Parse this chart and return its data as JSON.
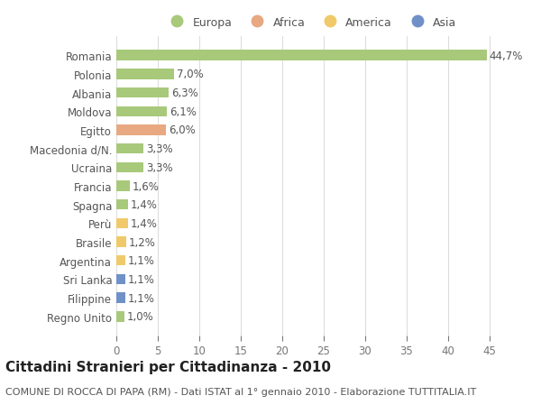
{
  "categories": [
    "Romania",
    "Polonia",
    "Albania",
    "Moldova",
    "Egitto",
    "Macedonia d/N.",
    "Ucraina",
    "Francia",
    "Spagna",
    "Perù",
    "Brasile",
    "Argentina",
    "Sri Lanka",
    "Filippine",
    "Regno Unito"
  ],
  "values": [
    44.7,
    7.0,
    6.3,
    6.1,
    6.0,
    3.3,
    3.3,
    1.6,
    1.4,
    1.4,
    1.2,
    1.1,
    1.1,
    1.1,
    1.0
  ],
  "labels": [
    "44,7%",
    "7,0%",
    "6,3%",
    "6,1%",
    "6,0%",
    "3,3%",
    "3,3%",
    "1,6%",
    "1,4%",
    "1,4%",
    "1,2%",
    "1,1%",
    "1,1%",
    "1,1%",
    "1,0%"
  ],
  "colors": [
    "#a8c97a",
    "#a8c97a",
    "#a8c97a",
    "#a8c97a",
    "#e8a882",
    "#a8c97a",
    "#a8c97a",
    "#a8c97a",
    "#a8c97a",
    "#f0ca6a",
    "#f0ca6a",
    "#f0ca6a",
    "#7090c8",
    "#7090c8",
    "#a8c97a"
  ],
  "legend_labels": [
    "Europa",
    "Africa",
    "America",
    "Asia"
  ],
  "legend_colors": [
    "#a8c97a",
    "#e8a882",
    "#f0ca6a",
    "#7090c8"
  ],
  "title": "Cittadini Stranieri per Cittadinanza - 2010",
  "subtitle": "COMUNE DI ROCCA DI PAPA (RM) - Dati ISTAT al 1° gennaio 2010 - Elaborazione TUTTITALIA.IT",
  "xlim": [
    0,
    47
  ],
  "xticks": [
    0,
    5,
    10,
    15,
    20,
    25,
    30,
    35,
    40,
    45
  ],
  "bg_color": "#ffffff",
  "plot_bg_color": "#ffffff",
  "grid_color": "#dddddd",
  "bar_height": 0.55,
  "label_fontsize": 8.5,
  "tick_fontsize": 8.5,
  "title_fontsize": 11,
  "subtitle_fontsize": 8
}
